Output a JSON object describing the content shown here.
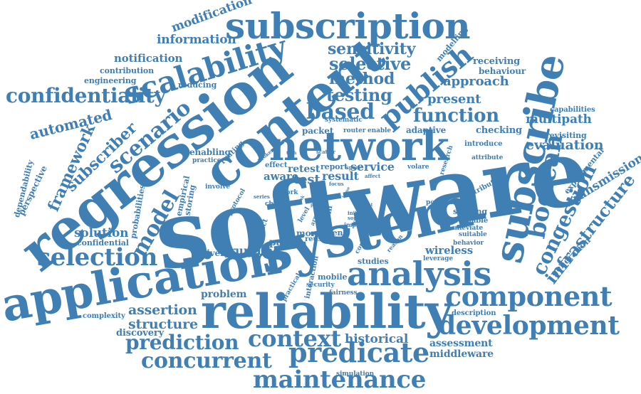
{
  "color": "#3f7fb4",
  "words": [
    {
      "text": "software"
    },
    {
      "text": "system"
    },
    {
      "text": "reliability"
    },
    {
      "text": "application"
    },
    {
      "text": "regression"
    },
    {
      "text": "content"
    },
    {
      "text": "network"
    },
    {
      "text": "subscription"
    },
    {
      "text": "subscribe"
    },
    {
      "text": "analysis"
    },
    {
      "text": "scalability"
    },
    {
      "text": "publish"
    },
    {
      "text": "component"
    },
    {
      "text": "development"
    },
    {
      "text": "predicate"
    },
    {
      "text": "concurrent"
    },
    {
      "text": "prediction"
    },
    {
      "text": "maintenance"
    },
    {
      "text": "context"
    },
    {
      "text": "selection"
    },
    {
      "text": "confidentiality"
    },
    {
      "text": "boolean"
    },
    {
      "text": "congestion"
    },
    {
      "text": "infrastructure"
    },
    {
      "text": "scenario"
    },
    {
      "text": "model"
    },
    {
      "text": "based"
    },
    {
      "text": "function"
    },
    {
      "text": "testing"
    },
    {
      "text": "selective"
    },
    {
      "text": "method"
    },
    {
      "text": "sensitivity"
    },
    {
      "text": "subscriber"
    },
    {
      "text": "framework"
    },
    {
      "text": "automated"
    },
    {
      "text": "information"
    },
    {
      "text": "modification"
    },
    {
      "text": "notification"
    },
    {
      "text": "approach"
    },
    {
      "text": "present"
    },
    {
      "text": "evaluation"
    },
    {
      "text": "multipath"
    },
    {
      "text": "transmission"
    },
    {
      "text": "assertion"
    },
    {
      "text": "structure"
    },
    {
      "text": "solution"
    },
    {
      "text": "runtime"
    },
    {
      "text": "wireless"
    },
    {
      "text": "historical"
    },
    {
      "text": "assessment"
    },
    {
      "text": "middleware"
    },
    {
      "text": "test"
    },
    {
      "text": "result"
    },
    {
      "text": "service"
    },
    {
      "text": "retest"
    },
    {
      "text": "aware"
    },
    {
      "text": "report"
    },
    {
      "text": "packet"
    },
    {
      "text": "problem"
    },
    {
      "text": "paper"
    },
    {
      "text": "studies"
    },
    {
      "text": "mobile"
    },
    {
      "text": "discovery"
    },
    {
      "text": "complexity"
    },
    {
      "text": "delivery"
    },
    {
      "text": "confidential"
    },
    {
      "text": "perspective"
    },
    {
      "text": "dependability"
    },
    {
      "text": "engineering"
    },
    {
      "text": "contribution"
    },
    {
      "text": "reducing"
    },
    {
      "text": "receiving"
    },
    {
      "text": "behaviour"
    },
    {
      "text": "modelling"
    },
    {
      "text": "capabilities"
    },
    {
      "text": "revisiting"
    },
    {
      "text": "checking"
    },
    {
      "text": "adaptive"
    },
    {
      "text": "introduce"
    },
    {
      "text": "attribute"
    },
    {
      "text": "experimental"
    },
    {
      "text": "generation"
    },
    {
      "text": "description"
    },
    {
      "text": "sending"
    },
    {
      "text": "available"
    },
    {
      "text": "alleviate"
    },
    {
      "text": "suitable"
    },
    {
      "text": "behavior"
    },
    {
      "text": "leverage"
    },
    {
      "text": "popular"
    },
    {
      "text": "contribute"
    },
    {
      "text": "probabilities"
    },
    {
      "text": "empirical"
    },
    {
      "text": "storing"
    },
    {
      "text": "enabling"
    },
    {
      "text": "routing"
    },
    {
      "text": "practice"
    },
    {
      "text": "involve"
    },
    {
      "text": "protocol"
    },
    {
      "text": "predict"
    },
    {
      "text": "more"
    },
    {
      "text": "agent"
    },
    {
      "text": "reuse"
    },
    {
      "text": "interaction"
    },
    {
      "text": "security"
    },
    {
      "text": "fairness"
    },
    {
      "text": "practical"
    },
    {
      "text": "simulation"
    },
    {
      "text": "systematic"
    },
    {
      "text": "router"
    },
    {
      "text": "enable"
    },
    {
      "text": "research"
    },
    {
      "text": "volare"
    },
    {
      "text": "filter"
    },
    {
      "text": "impact"
    },
    {
      "text": "convert"
    },
    {
      "text": "reason"
    },
    {
      "text": "initial"
    },
    {
      "text": "source"
    },
    {
      "text": "term"
    },
    {
      "text": "level"
    },
    {
      "text": "cbps"
    },
    {
      "text": "data"
    },
    {
      "text": "array"
    },
    {
      "text": "work"
    },
    {
      "text": "series"
    },
    {
      "text": "effect"
    },
    {
      "text": "broker"
    },
    {
      "text": "scatter"
    },
    {
      "text": "affect"
    },
    {
      "text": "focus"
    },
    {
      "text": "space"
    },
    {
      "text": "tech"
    },
    {
      "text": "link"
    },
    {
      "text": "path"
    },
    {
      "text": "point"
    },
    {
      "text": "issue"
    }
  ]
}
